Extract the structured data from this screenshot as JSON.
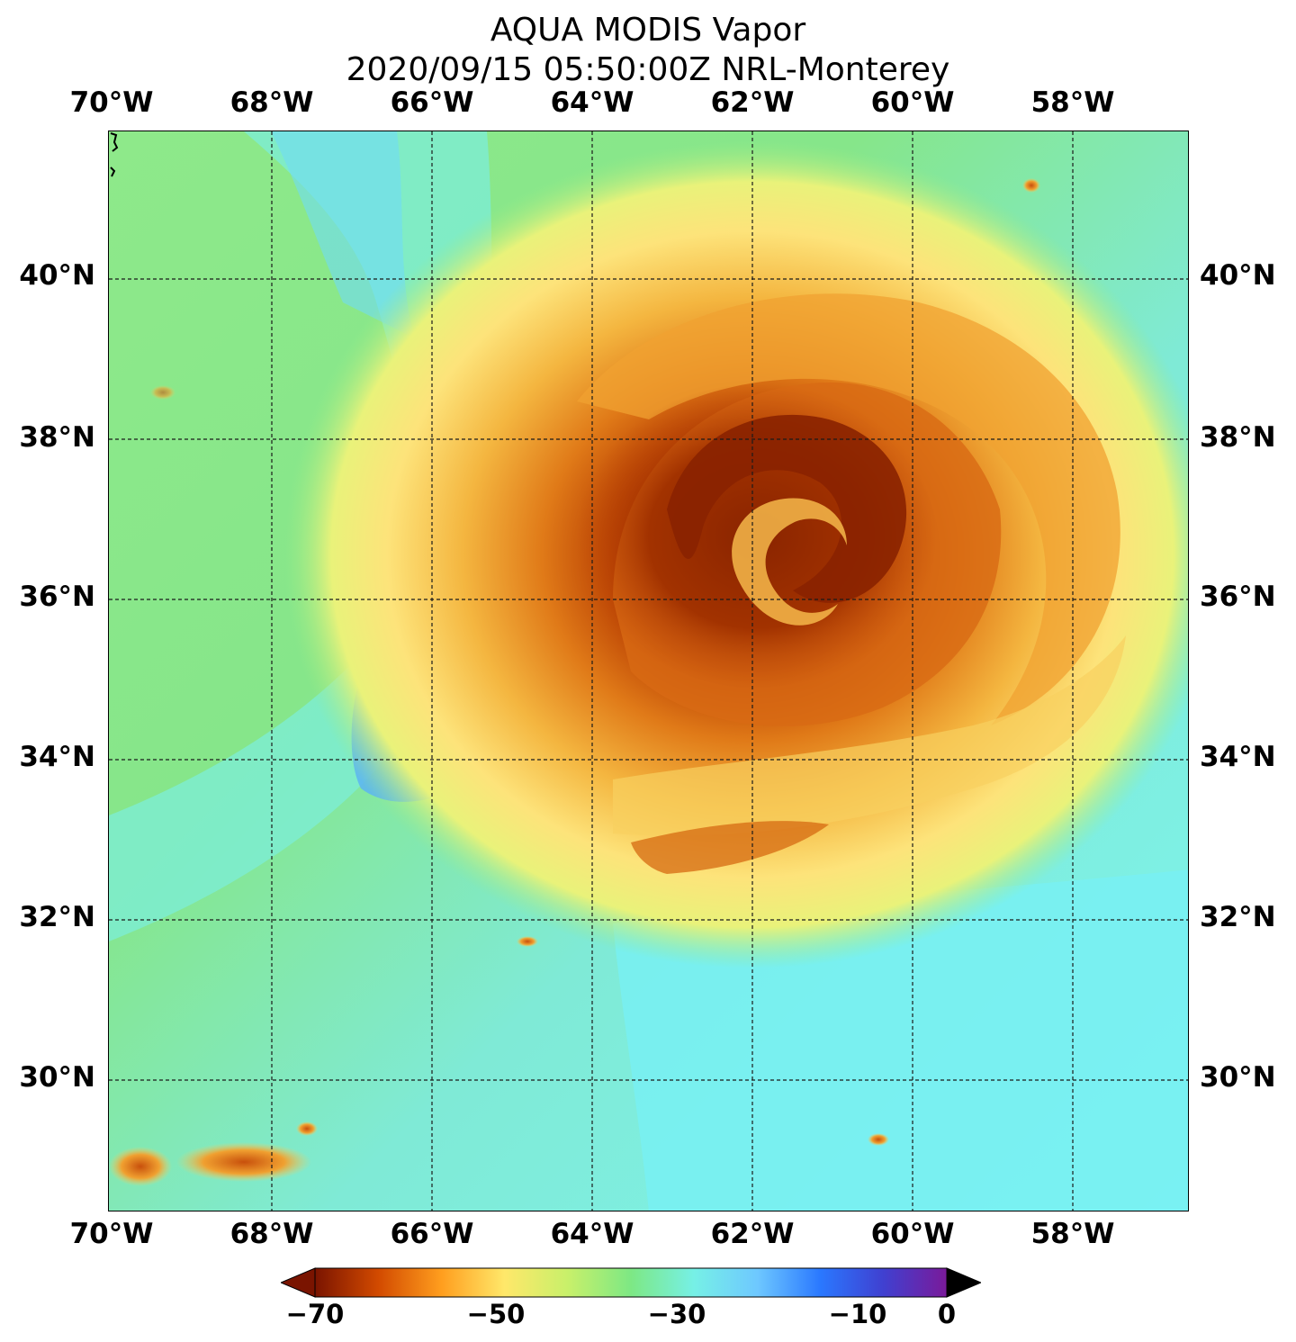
{
  "title": {
    "line1": "AQUA MODIS Vapor",
    "line2": "2020/09/15 05:50:00Z NRL-Monterey"
  },
  "map": {
    "lon_labels": [
      "70°W",
      "68°W",
      "66°W",
      "64°W",
      "62°W",
      "60°W",
      "58°W"
    ],
    "lat_labels": [
      "40°N",
      "38°N",
      "36°N",
      "34°N",
      "32°N",
      "30°N"
    ],
    "gridline_style": "dashed",
    "storm_center": {
      "lon": -61.8,
      "lat": 36.6
    }
  },
  "colorbar": {
    "ticks": [
      "−70",
      "−50",
      "−30",
      "−10",
      "0"
    ],
    "min": -70,
    "max": 0,
    "extend": "both",
    "colors": [
      "#7a1400",
      "#d24a00",
      "#ff9e1e",
      "#ffe86a",
      "#c8f06a",
      "#7de884",
      "#76f0e6",
      "#6ec8ff",
      "#2a78ff",
      "#4040d0",
      "#7a1a9a"
    ]
  }
}
